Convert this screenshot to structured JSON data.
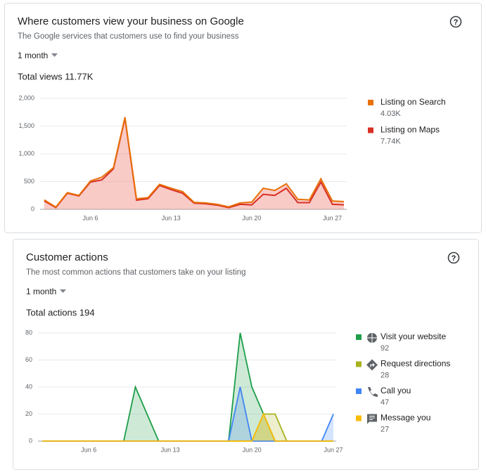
{
  "chart_data": [
    {
      "type": "area",
      "stacked": true,
      "title": "Where customers view your business on Google",
      "subtitle": "The Google services that customers use to find your business",
      "period": "1 month",
      "total": "Total views 11.77K",
      "categories": [
        null,
        null,
        null,
        null,
        "Jun 6",
        null,
        null,
        null,
        null,
        null,
        null,
        "Jun 13",
        null,
        null,
        null,
        null,
        null,
        null,
        "Jun 20",
        null,
        null,
        null,
        null,
        null,
        null,
        "Jun 27",
        null
      ],
      "series": [
        {
          "name": "Listing on Search",
          "color": "#e8710a",
          "total": "4.03K",
          "values": [
            20,
            10,
            10,
            10,
            20,
            50,
            20,
            20,
            25,
            20,
            20,
            25,
            30,
            15,
            15,
            15,
            15,
            25,
            50,
            110,
            90,
            80,
            60,
            50,
            60,
            60,
            60
          ]
        },
        {
          "name": "Listing on Maps",
          "color": "#d93025",
          "total": "7.74K",
          "values": [
            150,
            30,
            290,
            240,
            490,
            530,
            730,
            1640,
            165,
            190,
            430,
            355,
            290,
            110,
            100,
            75,
            30,
            90,
            80,
            270,
            250,
            380,
            120,
            120,
            490,
            90,
            80
          ]
        }
      ],
      "ylim": [
        0,
        2000
      ],
      "yticks": [
        0,
        500,
        {
          "value": 1000,
          "label": "1,000"
        },
        {
          "value": 1500,
          "label": "1,500"
        },
        {
          "value": 2000,
          "label": "2,000"
        }
      ],
      "grid": true
    },
    {
      "type": "area",
      "stacked": false,
      "title": "Customer actions",
      "subtitle": "The most common actions that customers take on your listing",
      "period": "1 month",
      "total": "Total actions 194",
      "categories": [
        null,
        null,
        null,
        null,
        "Jun 6",
        null,
        null,
        null,
        null,
        null,
        null,
        "Jun 13",
        null,
        null,
        null,
        null,
        null,
        null,
        "Jun 20",
        null,
        null,
        null,
        null,
        null,
        null,
        "Jun 27"
      ],
      "series": [
        {
          "name": "Visit your website",
          "color": "#1e9e4a",
          "total": "92",
          "values": [
            0,
            0,
            0,
            0,
            0,
            0,
            0,
            0,
            40,
            20,
            0,
            0,
            0,
            0,
            0,
            0,
            0,
            80,
            40,
            20,
            0,
            0,
            0,
            0,
            0,
            0
          ]
        },
        {
          "name": "Request directions",
          "color": "#a8b21e",
          "total": "28",
          "values": [
            0,
            0,
            0,
            0,
            0,
            0,
            0,
            0,
            0,
            0,
            0,
            0,
            0,
            0,
            0,
            0,
            0,
            0,
            0,
            20,
            20,
            0,
            0,
            0,
            0,
            0
          ]
        },
        {
          "name": "Call you",
          "color": "#4285f4",
          "total": "47",
          "values": [
            0,
            0,
            0,
            0,
            0,
            0,
            0,
            0,
            0,
            0,
            0,
            0,
            0,
            0,
            0,
            0,
            0,
            40,
            0,
            0,
            0,
            0,
            0,
            0,
            0,
            20
          ]
        },
        {
          "name": "Message you",
          "color": "#fbbc04",
          "total": "27",
          "values": [
            0,
            0,
            0,
            0,
            0,
            0,
            0,
            0,
            0,
            0,
            0,
            0,
            0,
            0,
            0,
            0,
            0,
            0,
            0,
            20,
            0,
            0,
            0,
            0,
            0,
            0
          ]
        }
      ],
      "ylim": [
        0,
        80
      ],
      "yticks": [
        0,
        20,
        40,
        60,
        80
      ],
      "grid": true
    }
  ]
}
